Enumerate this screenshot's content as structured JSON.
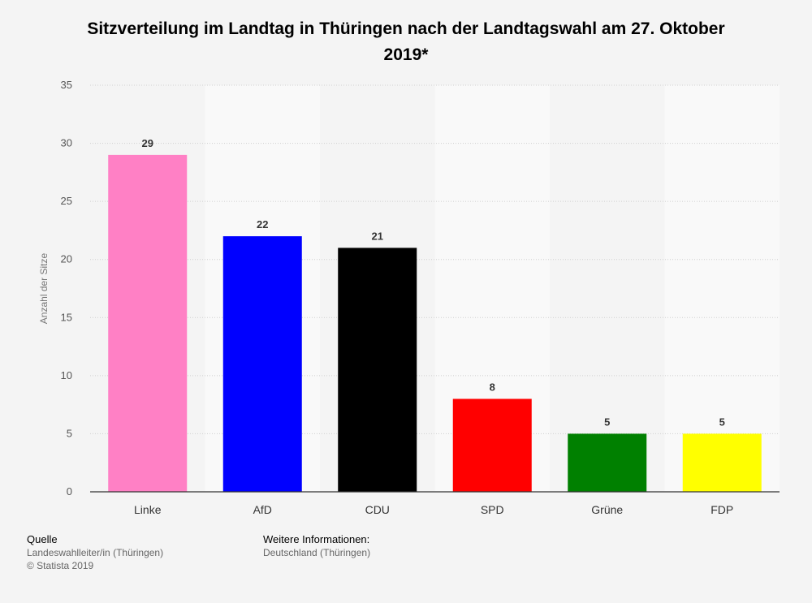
{
  "chart_data": {
    "type": "bar",
    "title": "Sitzverteilung im Landtag in Thüringen nach der Landtagswahl am 27. Oktober 2019*",
    "categories": [
      "Linke",
      "AfD",
      "CDU",
      "SPD",
      "Grüne",
      "FDP"
    ],
    "values": [
      29,
      22,
      21,
      8,
      5,
      5
    ],
    "colors": [
      "#ff80c5",
      "#0000ff",
      "#000000",
      "#ff0000",
      "#008000",
      "#ffff00"
    ],
    "xlabel": "",
    "ylabel": "Anzahl der Sitze",
    "ylim": [
      0,
      35
    ],
    "yticks": [
      0,
      5,
      10,
      15,
      20,
      25,
      30,
      35
    ],
    "grid": true,
    "legend": "none"
  },
  "footer": {
    "source_heading": "Quelle",
    "source_text": "Landeswahlleiter/in (Thüringen)",
    "copyright": "© Statista 2019",
    "info_heading": "Weitere Informationen:",
    "info_text": "Deutschland (Thüringen)"
  }
}
